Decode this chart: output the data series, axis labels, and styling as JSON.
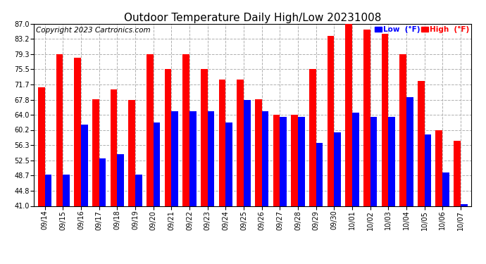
{
  "title": "Outdoor Temperature Daily High/Low 20231008",
  "copyright": "Copyright 2023 Cartronics.com",
  "dates": [
    "09/14",
    "09/15",
    "09/16",
    "09/17",
    "09/18",
    "09/19",
    "09/20",
    "09/21",
    "09/22",
    "09/23",
    "09/24",
    "09/25",
    "09/26",
    "09/27",
    "09/28",
    "09/29",
    "09/30",
    "10/01",
    "10/02",
    "10/03",
    "10/04",
    "10/05",
    "10/06",
    "10/07"
  ],
  "highs": [
    71.0,
    79.3,
    78.5,
    68.0,
    70.5,
    67.8,
    79.3,
    75.5,
    79.3,
    75.5,
    73.0,
    73.0,
    68.0,
    64.0,
    64.0,
    75.5,
    84.0,
    87.0,
    85.5,
    84.5,
    79.3,
    72.5,
    60.2,
    57.5
  ],
  "lows": [
    49.0,
    49.0,
    61.5,
    53.0,
    54.0,
    49.0,
    62.0,
    65.0,
    65.0,
    65.0,
    62.0,
    67.8,
    65.0,
    63.5,
    63.5,
    57.0,
    59.5,
    64.5,
    63.5,
    63.5,
    68.5,
    59.0,
    49.5,
    41.5
  ],
  "high_color": "#ff0000",
  "low_color": "#0000ff",
  "bg_color": "#ffffff",
  "grid_color": "#b0b0b0",
  "yticks": [
    41.0,
    44.8,
    48.7,
    52.5,
    56.3,
    60.2,
    64.0,
    67.8,
    71.7,
    75.5,
    79.3,
    83.2,
    87.0
  ],
  "ylim": [
    41.0,
    87.0
  ],
  "ymin": 41.0,
  "legend_low_label": "Low  (°F)",
  "legend_high_label": "High  (°F)",
  "title_fontsize": 11,
  "copyright_fontsize": 7.5,
  "tick_fontsize": 7,
  "bar_width": 0.38
}
